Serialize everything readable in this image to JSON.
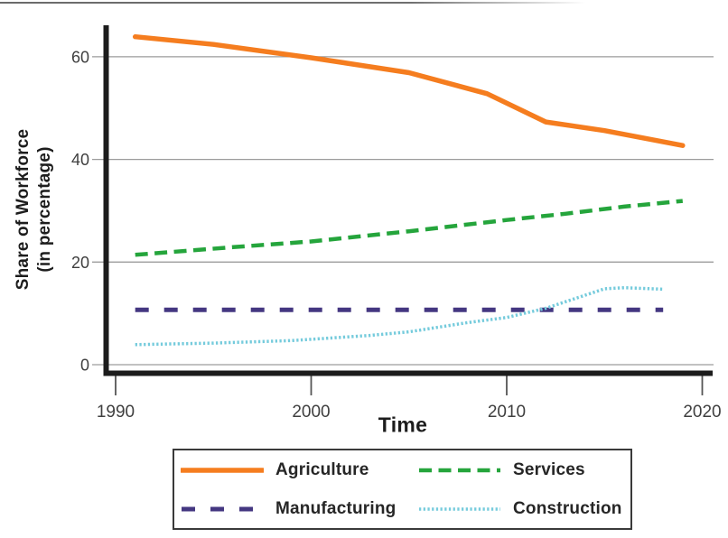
{
  "chart_data": {
    "type": "line",
    "title": "",
    "xlabel": "Time",
    "ylabel_lines": [
      "Share of Workforce",
      "(in percentage)"
    ],
    "x_ticks": [
      "1990",
      "2000",
      "2010",
      "2020"
    ],
    "x_tick_years": [
      1990,
      2000,
      2010,
      2020
    ],
    "y_ticks": [
      "0",
      "20",
      "40",
      "60"
    ],
    "y_tick_values": [
      0,
      20,
      40,
      60
    ],
    "xlim": [
      1990,
      2020
    ],
    "ylim": [
      0,
      66
    ],
    "grid": "horizontal-only",
    "legend_position": "bottom-center-box",
    "series": [
      {
        "name": "Agriculture",
        "color": "#F57D1F",
        "line_style": "solid",
        "stroke_width": 5.5,
        "points": [
          [
            1991,
            63.9
          ],
          [
            1995,
            62.4
          ],
          [
            2000,
            59.8
          ],
          [
            2005,
            56.9
          ],
          [
            2009,
            52.8
          ],
          [
            2012,
            47.3
          ],
          [
            2015,
            45.6
          ],
          [
            2019,
            42.7
          ]
        ]
      },
      {
        "name": "Services",
        "color": "#25A53C",
        "line_style": "dashed",
        "stroke_width": 4.5,
        "points": [
          [
            1991,
            21.4
          ],
          [
            1996,
            22.9
          ],
          [
            2000,
            24.0
          ],
          [
            2005,
            26.0
          ],
          [
            2010,
            28.2
          ],
          [
            2013,
            29.4
          ],
          [
            2016,
            30.8
          ],
          [
            2019,
            31.9
          ]
        ]
      },
      {
        "name": "Manufacturing",
        "color": "#443781",
        "line_style": "long-dash",
        "stroke_width": 5,
        "points": [
          [
            1991,
            10.7
          ],
          [
            2018,
            10.7
          ]
        ]
      },
      {
        "name": "Construction",
        "color": "#75CBDC",
        "line_style": "dotted",
        "stroke_width": 3.5,
        "points": [
          [
            1991,
            3.9
          ],
          [
            1995,
            4.2
          ],
          [
            1999,
            4.7
          ],
          [
            2003,
            5.7
          ],
          [
            2005,
            6.4
          ],
          [
            2008,
            8.2
          ],
          [
            2010,
            9.2
          ],
          [
            2012,
            11.0
          ],
          [
            2015,
            14.8
          ],
          [
            2016,
            15.0
          ],
          [
            2018,
            14.7
          ]
        ]
      }
    ]
  },
  "colors": {
    "axis": "#1c1c1c",
    "gridline": "#9c9c9c",
    "tick_mark": "#555555",
    "tick_label": "#3f3f3f",
    "legend_border": "#3a3a3a"
  }
}
